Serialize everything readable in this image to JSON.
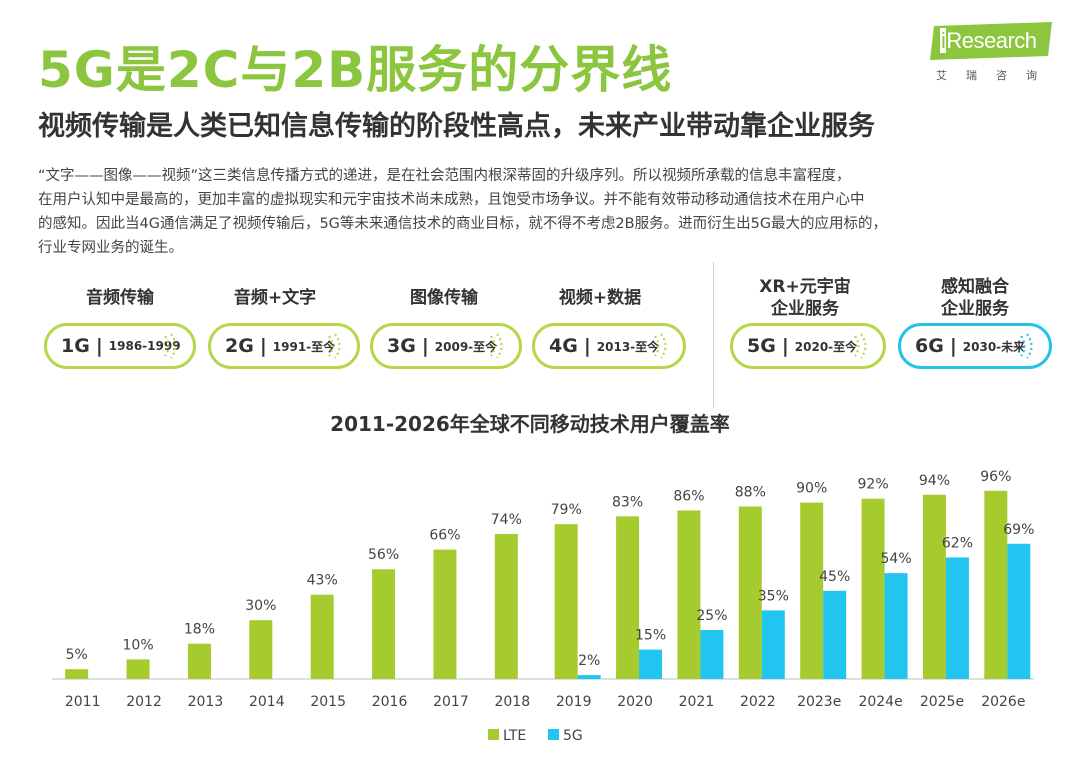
{
  "header": {
    "title": "5G是2C与2B服务的分界线",
    "subtitle": "视频传输是人类已知信息传输的阶段性高点，未来产业带动靠企业服务"
  },
  "logo": {
    "letter_i": "i",
    "name": "Research",
    "sub": "艾瑞咨询"
  },
  "description_lines": [
    "“文字——图像——视频”这三类信息传播方式的递进，是在社会范围内根深蒂固的升级序列。所以视频所承载的信息丰富程度，",
    "在用户认知中是最高的，更加丰富的虚拟现实和元宇宙技术尚未成熟，且饱受市场争议。并不能有效带动移动通信技术在用户心中",
    "的感知。因此当4G通信满足了视频传输后，5G等未来通信技术的商业目标，就不得不考虑2B服务。进而衍生出5G最大的应用标的，",
    "行业专网业务的诞生。"
  ],
  "eras": [
    {
      "label": "音频传输",
      "gen": "1G",
      "years": "1986-1999",
      "color": "#b5d74a"
    },
    {
      "label": "音频+文字",
      "gen": "2G",
      "years": "1991-至今",
      "color": "#b5d74a"
    },
    {
      "label": "图像传输",
      "gen": "3G",
      "years": "2009-至今",
      "color": "#b5d74a"
    },
    {
      "label": "视频+数据",
      "gen": "4G",
      "years": "2013-至今",
      "color": "#b5d74a"
    },
    {
      "label_line1": "XR+元宇宙",
      "label_line2": "企业服务",
      "gen": "5G",
      "years": "2020-至今",
      "color": "#b5d74a"
    },
    {
      "label_line1": "感知融合",
      "label_line2": "企业服务",
      "gen": "6G",
      "years": "2030-未来",
      "color": "#22c3e6"
    }
  ],
  "separator": "|",
  "chart_data": {
    "type": "bar",
    "title": "2011-2026年全球不同移动技术用户覆盖率",
    "categories": [
      "2011",
      "2012",
      "2013",
      "2014",
      "2015",
      "2016",
      "2017",
      "2018",
      "2019",
      "2020",
      "2021",
      "2022",
      "2023e",
      "2024e",
      "2025e",
      "2026e"
    ],
    "series": [
      {
        "name": "LTE",
        "color": "#a6cb2f",
        "values": [
          5,
          10,
          18,
          30,
          43,
          56,
          66,
          74,
          79,
          83,
          86,
          88,
          90,
          92,
          94,
          96
        ],
        "labels": [
          "5%",
          "10%",
          "18%",
          "30%",
          "43%",
          "56%",
          "66%",
          "74%",
          "79%",
          "83%",
          "86%",
          "88%",
          "90%",
          "92%",
          "94%",
          "96%"
        ]
      },
      {
        "name": "5G",
        "color": "#22c5ef",
        "values": [
          null,
          null,
          null,
          null,
          null,
          null,
          null,
          null,
          2,
          15,
          25,
          35,
          45,
          54,
          62,
          69
        ],
        "labels": [
          "",
          "",
          "",
          "",
          "",
          "",
          "",
          "",
          "2%",
          "15%",
          "25%",
          "35%",
          "45%",
          "54%",
          "62%",
          "69%"
        ]
      }
    ],
    "ylim": [
      0,
      100
    ],
    "legend_position": "bottom-center",
    "grid": false
  }
}
